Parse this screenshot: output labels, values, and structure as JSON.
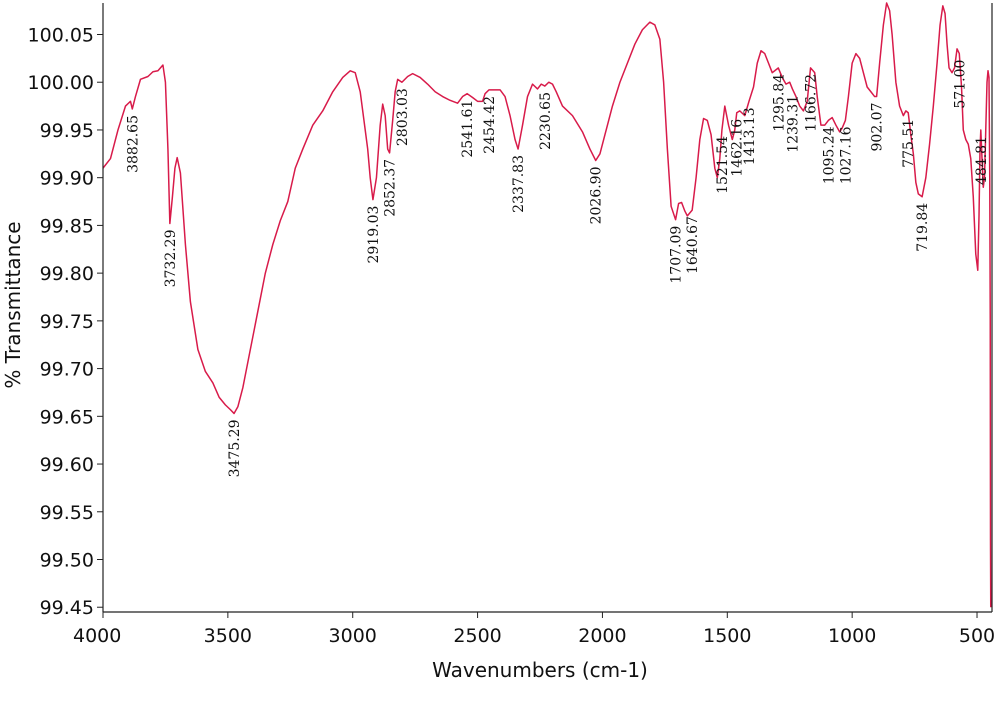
{
  "chart_data": {
    "type": "line",
    "title": "",
    "xlabel": "Wavenumbers (cm-1)",
    "ylabel": "% Transmittance",
    "xlim": [
      4000,
      440
    ],
    "ylim": [
      99.445,
      100.083
    ],
    "x_reversed": true,
    "grid": false,
    "line_color": "#d81b4a",
    "xticks": [
      4000,
      3500,
      3000,
      2500,
      2000,
      1500,
      1000,
      500
    ],
    "xtick_labels": [
      "4000",
      "3500",
      "3000",
      "2500",
      "2000",
      "1500",
      "1000",
      "500"
    ],
    "yticks": [
      100.05,
      100.0,
      99.95,
      99.9,
      99.85,
      99.8,
      99.75,
      99.7,
      99.65,
      99.6,
      99.55,
      99.5,
      99.45
    ],
    "ytick_labels": [
      "100.05",
      "100.00",
      "99.95",
      "99.90",
      "99.85",
      "99.80",
      "99.75",
      "99.70",
      "99.65",
      "99.60",
      "99.55",
      "99.50",
      "99.45"
    ],
    "series": [
      {
        "points": [
          [
            4000,
            99.91
          ],
          [
            3970,
            99.92
          ],
          [
            3940,
            99.95
          ],
          [
            3910,
            99.975
          ],
          [
            3890,
            99.98
          ],
          [
            3882.65,
            99.972
          ],
          [
            3870,
            99.985
          ],
          [
            3850,
            100.003
          ],
          [
            3820,
            100.006
          ],
          [
            3800,
            100.011
          ],
          [
            3780,
            100.012
          ],
          [
            3760,
            100.018
          ],
          [
            3750,
            100.0
          ],
          [
            3740,
            99.93
          ],
          [
            3732.29,
            99.852
          ],
          [
            3722,
            99.88
          ],
          [
            3712,
            99.91
          ],
          [
            3703,
            99.921
          ],
          [
            3690,
            99.905
          ],
          [
            3670,
            99.83
          ],
          [
            3650,
            99.77
          ],
          [
            3620,
            99.72
          ],
          [
            3590,
            99.697
          ],
          [
            3560,
            99.685
          ],
          [
            3535,
            99.67
          ],
          [
            3510,
            99.662
          ],
          [
            3490,
            99.657
          ],
          [
            3475.29,
            99.653
          ],
          [
            3460,
            99.66
          ],
          [
            3440,
            99.68
          ],
          [
            3410,
            99.72
          ],
          [
            3380,
            99.76
          ],
          [
            3350,
            99.8
          ],
          [
            3320,
            99.83
          ],
          [
            3290,
            99.855
          ],
          [
            3260,
            99.875
          ],
          [
            3230,
            99.91
          ],
          [
            3200,
            99.93
          ],
          [
            3160,
            99.955
          ],
          [
            3120,
            99.97
          ],
          [
            3080,
            99.99
          ],
          [
            3040,
            100.005
          ],
          [
            3010,
            100.012
          ],
          [
            2990,
            100.01
          ],
          [
            2970,
            99.99
          ],
          [
            2955,
            99.96
          ],
          [
            2940,
            99.93
          ],
          [
            2930,
            99.9
          ],
          [
            2919.03,
            99.877
          ],
          [
            2905,
            99.9
          ],
          [
            2890,
            99.955
          ],
          [
            2880,
            99.977
          ],
          [
            2870,
            99.965
          ],
          [
            2860,
            99.93
          ],
          [
            2852.37,
            99.926
          ],
          [
            2840,
            99.96
          ],
          [
            2830,
            99.99
          ],
          [
            2820,
            100.003
          ],
          [
            2803.03,
            100.0
          ],
          [
            2780,
            100.006
          ],
          [
            2760,
            100.009
          ],
          [
            2730,
            100.005
          ],
          [
            2700,
            99.998
          ],
          [
            2670,
            99.99
          ],
          [
            2640,
            99.985
          ],
          [
            2610,
            99.981
          ],
          [
            2580,
            99.978
          ],
          [
            2560,
            99.985
          ],
          [
            2541.61,
            99.988
          ],
          [
            2520,
            99.984
          ],
          [
            2500,
            99.98
          ],
          [
            2480,
            99.98
          ],
          [
            2470,
            99.988
          ],
          [
            2454.42,
            99.992
          ],
          [
            2430,
            99.992
          ],
          [
            2410,
            99.992
          ],
          [
            2390,
            99.985
          ],
          [
            2370,
            99.965
          ],
          [
            2350,
            99.94
          ],
          [
            2337.83,
            99.93
          ],
          [
            2320,
            99.955
          ],
          [
            2300,
            99.985
          ],
          [
            2280,
            99.998
          ],
          [
            2260,
            99.993
          ],
          [
            2245,
            99.998
          ],
          [
            2230.65,
            99.996
          ],
          [
            2215,
            100.0
          ],
          [
            2200,
            99.998
          ],
          [
            2185,
            99.99
          ],
          [
            2160,
            99.975
          ],
          [
            2120,
            99.965
          ],
          [
            2080,
            99.948
          ],
          [
            2050,
            99.93
          ],
          [
            2026.9,
            99.918
          ],
          [
            2010,
            99.925
          ],
          [
            1990,
            99.945
          ],
          [
            1960,
            99.975
          ],
          [
            1930,
            100.0
          ],
          [
            1900,
            100.02
          ],
          [
            1870,
            100.04
          ],
          [
            1840,
            100.055
          ],
          [
            1810,
            100.063
          ],
          [
            1790,
            100.06
          ],
          [
            1770,
            100.045
          ],
          [
            1755,
            100.0
          ],
          [
            1740,
            99.93
          ],
          [
            1725,
            99.87
          ],
          [
            1707.09,
            99.856
          ],
          [
            1695,
            99.873
          ],
          [
            1683,
            99.874
          ],
          [
            1670,
            99.865
          ],
          [
            1660,
            99.86
          ],
          [
            1640.67,
            99.866
          ],
          [
            1625,
            99.9
          ],
          [
            1610,
            99.94
          ],
          [
            1595,
            99.962
          ],
          [
            1580,
            99.96
          ],
          [
            1565,
            99.945
          ],
          [
            1550,
            99.91
          ],
          [
            1540,
            99.9
          ],
          [
            1530,
            99.92
          ],
          [
            1521.54,
            99.95
          ],
          [
            1510,
            99.975
          ],
          [
            1495,
            99.955
          ],
          [
            1480,
            99.94
          ],
          [
            1470,
            99.95
          ],
          [
            1462.16,
            99.968
          ],
          [
            1450,
            99.97
          ],
          [
            1430,
            99.965
          ],
          [
            1413.13,
            99.98
          ],
          [
            1395,
            99.995
          ],
          [
            1380,
            100.02
          ],
          [
            1365,
            100.033
          ],
          [
            1350,
            100.03
          ],
          [
            1335,
            100.02
          ],
          [
            1320,
            100.01
          ],
          [
            1310,
            100.012
          ],
          [
            1295.84,
            100.015
          ],
          [
            1280,
            100.005
          ],
          [
            1265,
            99.998
          ],
          [
            1250,
            100.0
          ],
          [
            1239.31,
            99.993
          ],
          [
            1225,
            99.985
          ],
          [
            1210,
            99.975
          ],
          [
            1195,
            99.97
          ],
          [
            1180,
            99.98
          ],
          [
            1166.72,
            100.015
          ],
          [
            1150,
            100.01
          ],
          [
            1140,
            99.985
          ],
          [
            1125,
            99.955
          ],
          [
            1110,
            99.955
          ],
          [
            1095.24,
            99.96
          ],
          [
            1080,
            99.963
          ],
          [
            1065,
            99.955
          ],
          [
            1050,
            99.948
          ],
          [
            1040,
            99.952
          ],
          [
            1027.16,
            99.96
          ],
          [
            1015,
            99.985
          ],
          [
            1000,
            100.02
          ],
          [
            985,
            100.03
          ],
          [
            970,
            100.025
          ],
          [
            955,
            100.01
          ],
          [
            940,
            99.995
          ],
          [
            925,
            99.99
          ],
          [
            910,
            99.985
          ],
          [
            902.07,
            99.985
          ],
          [
            890,
            100.02
          ],
          [
            875,
            100.06
          ],
          [
            862,
            100.083
          ],
          [
            850,
            100.075
          ],
          [
            840,
            100.05
          ],
          [
            825,
            100.0
          ],
          [
            810,
            99.975
          ],
          [
            795,
            99.965
          ],
          [
            785,
            99.97
          ],
          [
            775.51,
            99.968
          ],
          [
            765,
            99.945
          ],
          [
            755,
            99.925
          ],
          [
            745,
            99.895
          ],
          [
            735,
            99.883
          ],
          [
            719.84,
            99.88
          ],
          [
            705,
            99.9
          ],
          [
            690,
            99.935
          ],
          [
            675,
            99.975
          ],
          [
            660,
            100.02
          ],
          [
            648,
            100.06
          ],
          [
            637,
            100.08
          ],
          [
            628,
            100.072
          ],
          [
            620,
            100.04
          ],
          [
            612,
            100.015
          ],
          [
            600,
            100.01
          ],
          [
            590,
            100.015
          ],
          [
            580,
            100.035
          ],
          [
            571,
            100.03
          ],
          [
            562,
            99.995
          ],
          [
            555,
            99.95
          ],
          [
            545,
            99.94
          ],
          [
            535,
            99.935
          ],
          [
            525,
            99.92
          ],
          [
            515,
            99.88
          ],
          [
            505,
            99.82
          ],
          [
            497,
            99.803
          ],
          [
            492,
            99.86
          ],
          [
            488,
            99.93
          ],
          [
            484.81,
            99.95
          ],
          [
            480,
            99.92
          ],
          [
            475,
            99.89
          ],
          [
            470,
            99.9
          ],
          [
            465,
            99.95
          ],
          [
            460,
            100.0
          ],
          [
            456,
            100.012
          ],
          [
            452,
            100.005
          ],
          [
            449,
            99.9
          ],
          [
            447,
            99.75
          ],
          [
            446,
            99.52
          ],
          [
            445,
            99.45
          ]
        ]
      }
    ],
    "annotations": [
      {
        "text": "3882.65",
        "x": 3882.65,
        "y": 99.972
      },
      {
        "text": "3732.29",
        "x": 3732.29,
        "y": 99.852
      },
      {
        "text": "3475.29",
        "x": 3475.29,
        "y": 99.653
      },
      {
        "text": "2919.03",
        "x": 2919.03,
        "y": 99.877
      },
      {
        "text": "2852.37",
        "x": 2852.37,
        "y": 99.926
      },
      {
        "text": "2803.03",
        "x": 2803.03,
        "y": 100.0
      },
      {
        "text": "2541.61",
        "x": 2541.61,
        "y": 99.988
      },
      {
        "text": "2454.42",
        "x": 2454.42,
        "y": 99.992
      },
      {
        "text": "2337.83",
        "x": 2337.83,
        "y": 99.93
      },
      {
        "text": "2230.65",
        "x": 2230.65,
        "y": 99.996
      },
      {
        "text": "2026.90",
        "x": 2026.9,
        "y": 99.918
      },
      {
        "text": "1707.09",
        "x": 1707.09,
        "y": 99.856
      },
      {
        "text": "1640.67",
        "x": 1640.67,
        "y": 99.866
      },
      {
        "text": "1521.54",
        "x": 1521.54,
        "y": 99.95
      },
      {
        "text": "1462.16",
        "x": 1462.16,
        "y": 99.968
      },
      {
        "text": "1413.13",
        "x": 1413.13,
        "y": 99.98
      },
      {
        "text": "1295.84",
        "x": 1295.84,
        "y": 100.015
      },
      {
        "text": "1239.31",
        "x": 1239.31,
        "y": 99.993
      },
      {
        "text": "1166.72",
        "x": 1166.72,
        "y": 100.015
      },
      {
        "text": "1095.24",
        "x": 1095.24,
        "y": 99.96
      },
      {
        "text": "1027.16",
        "x": 1027.16,
        "y": 99.96
      },
      {
        "text": "902.07",
        "x": 902.07,
        "y": 99.985
      },
      {
        "text": "775.51",
        "x": 775.51,
        "y": 99.968
      },
      {
        "text": "719.84",
        "x": 719.84,
        "y": 99.88
      },
      {
        "text": "571.00",
        "x": 571.0,
        "y": 100.03
      },
      {
        "text": "484.81",
        "x": 484.81,
        "y": 99.95
      }
    ]
  }
}
